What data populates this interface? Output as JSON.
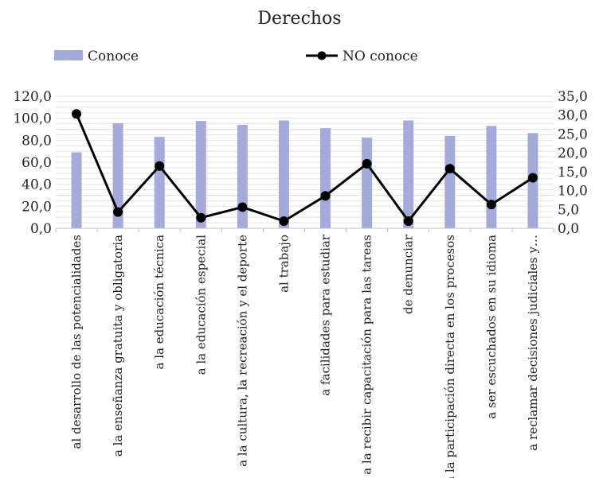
{
  "chart_data": {
    "type": "bar",
    "title": "Derechos",
    "categories": [
      "al desarrollo de las potencialidades",
      "a la enseñanza gratuita y obligatoria",
      "a la educación técnica",
      "a la educación especial",
      "a la cultura, la recreación y el deporte",
      "al trabajo",
      "a facilidades para estudiar",
      "a la recibir capacitación para las tareas",
      "de denunciar",
      "a la participación directa en los procesos",
      "a ser escuchados en su idioma",
      "a reclamar decisiones judiciales y…"
    ],
    "series": [
      {
        "name": "Conoce",
        "type": "bar",
        "axis": "left",
        "color": "#a4abd8",
        "values": [
          69.0,
          95.5,
          83.0,
          97.5,
          94.0,
          98.0,
          91.0,
          82.5,
          98.0,
          84.0,
          93.0,
          86.5
        ]
      },
      {
        "name": "NO conoce",
        "type": "line",
        "axis": "right",
        "color": "#000000",
        "values": [
          30.3,
          4.3,
          16.5,
          2.8,
          5.6,
          1.9,
          8.6,
          17.1,
          1.9,
          15.8,
          6.3,
          13.4
        ]
      }
    ],
    "yaxis_left": {
      "min": 0,
      "max": 120,
      "step": 20,
      "ticks": [
        "0,0",
        "20,0",
        "40,0",
        "60,0",
        "80,0",
        "100,0",
        "120,0"
      ]
    },
    "yaxis_right": {
      "min": 0,
      "max": 35,
      "step": 5,
      "ticks": [
        "0,0",
        "5,0",
        "10,0",
        "15,0",
        "20,0",
        "25,0",
        "30,0",
        "35,0"
      ]
    },
    "grid": true,
    "legend_position": "top"
  }
}
